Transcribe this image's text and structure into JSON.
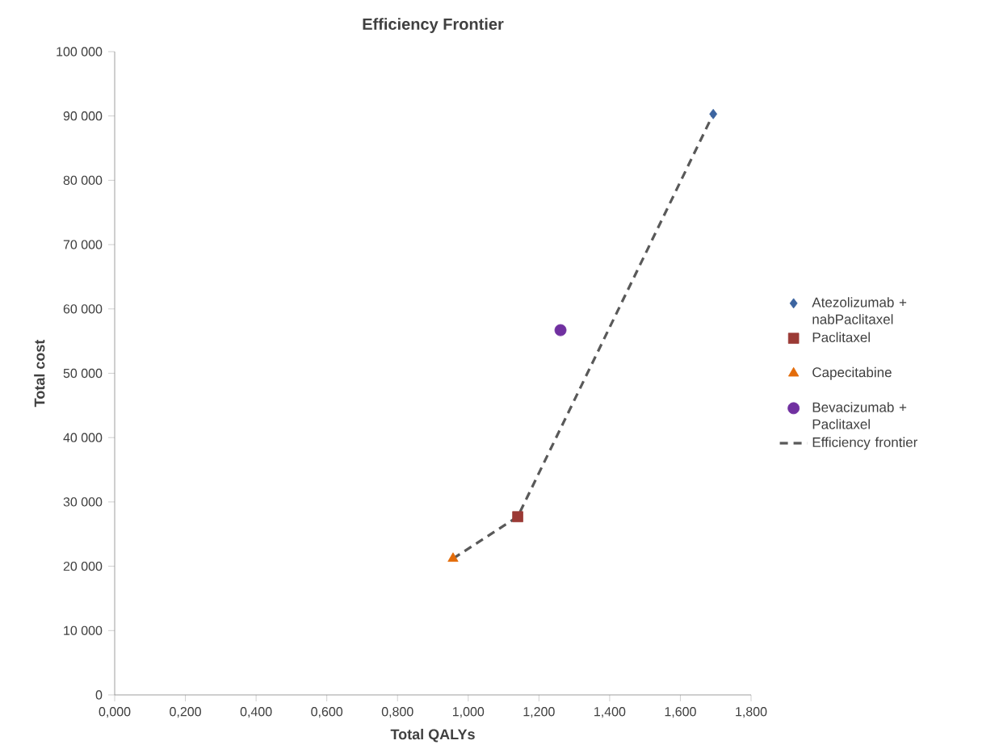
{
  "chart_data": {
    "type": "scatter",
    "title": "Efficiency Frontier",
    "xlabel": "Total QALYs",
    "ylabel": "Total cost",
    "xlim": [
      0,
      1.8
    ],
    "ylim": [
      0,
      100000
    ],
    "xticks": [
      {
        "value": 0,
        "label": "0,000"
      },
      {
        "value": 0.2,
        "label": "0,200"
      },
      {
        "value": 0.4,
        "label": "0,400"
      },
      {
        "value": 0.6,
        "label": "0,600"
      },
      {
        "value": 0.8,
        "label": "0,800"
      },
      {
        "value": 1.0,
        "label": "1,000"
      },
      {
        "value": 1.2,
        "label": "1,200"
      },
      {
        "value": 1.4,
        "label": "1,400"
      },
      {
        "value": 1.6,
        "label": "1,600"
      },
      {
        "value": 1.8,
        "label": "1,800"
      }
    ],
    "yticks": [
      0,
      {
        "value": 10000,
        "label": "10 000"
      },
      {
        "value": 20000,
        "label": "20 000"
      },
      {
        "value": 30000,
        "label": "30 000"
      },
      {
        "value": 40000,
        "label": "40 000"
      },
      {
        "value": 50000,
        "label": "50 000"
      },
      {
        "value": 60000,
        "label": "60 000"
      },
      {
        "value": 70000,
        "label": "70 000"
      },
      {
        "value": 80000,
        "label": "80 000"
      },
      {
        "value": 90000,
        "label": "90 000"
      },
      {
        "value": 100000,
        "label": "100 000"
      }
    ],
    "grid": false,
    "legend": "right",
    "series": [
      {
        "name": "Atezolizumab + nabPaclitaxel",
        "color": "#3c64a0",
        "marker": "diamond",
        "x": [
          1.693
        ],
        "values": [
          90300
        ]
      },
      {
        "name": "Paclitaxel",
        "color": "#9b3a35",
        "marker": "square",
        "x": [
          1.14
        ],
        "values": [
          27700
        ]
      },
      {
        "name": "Capecitabine",
        "color": "#e36c0a",
        "marker": "triangle",
        "x": [
          0.957
        ],
        "values": [
          21200
        ]
      },
      {
        "name": "Bevacizumab + Paclitaxel",
        "color": "#7030a0",
        "marker": "circle",
        "x": [
          1.261
        ],
        "values": [
          56700
        ]
      },
      {
        "name": "Efficiency frontier",
        "type": "line",
        "color": "#595959",
        "line_style": "dashed",
        "marker": "none",
        "x": [
          0.957,
          1.14,
          1.693
        ],
        "values": [
          21200,
          27700,
          90300
        ]
      }
    ]
  }
}
